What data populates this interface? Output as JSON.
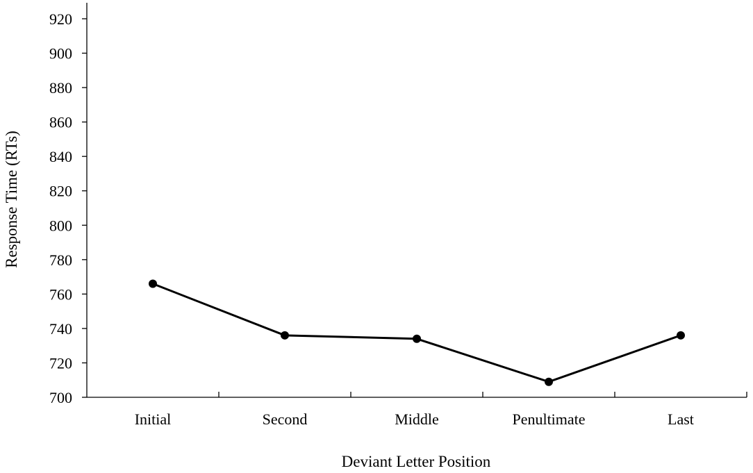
{
  "chart_data": {
    "type": "line",
    "title": "",
    "xlabel": "Deviant Letter Position",
    "ylabel": "Response Time (RTs)",
    "categories": [
      "Initial",
      "Second",
      "Middle",
      "Penultimate",
      "Last"
    ],
    "series": [
      {
        "values": [
          766,
          736,
          734,
          709,
          736
        ]
      }
    ],
    "ylim": [
      700,
      920
    ],
    "yticks": [
      700,
      720,
      740,
      760,
      780,
      800,
      820,
      840,
      860,
      880,
      900,
      920
    ],
    "grid": false,
    "legend": "none",
    "line_color": "#000000",
    "marker_color": "#000000"
  }
}
